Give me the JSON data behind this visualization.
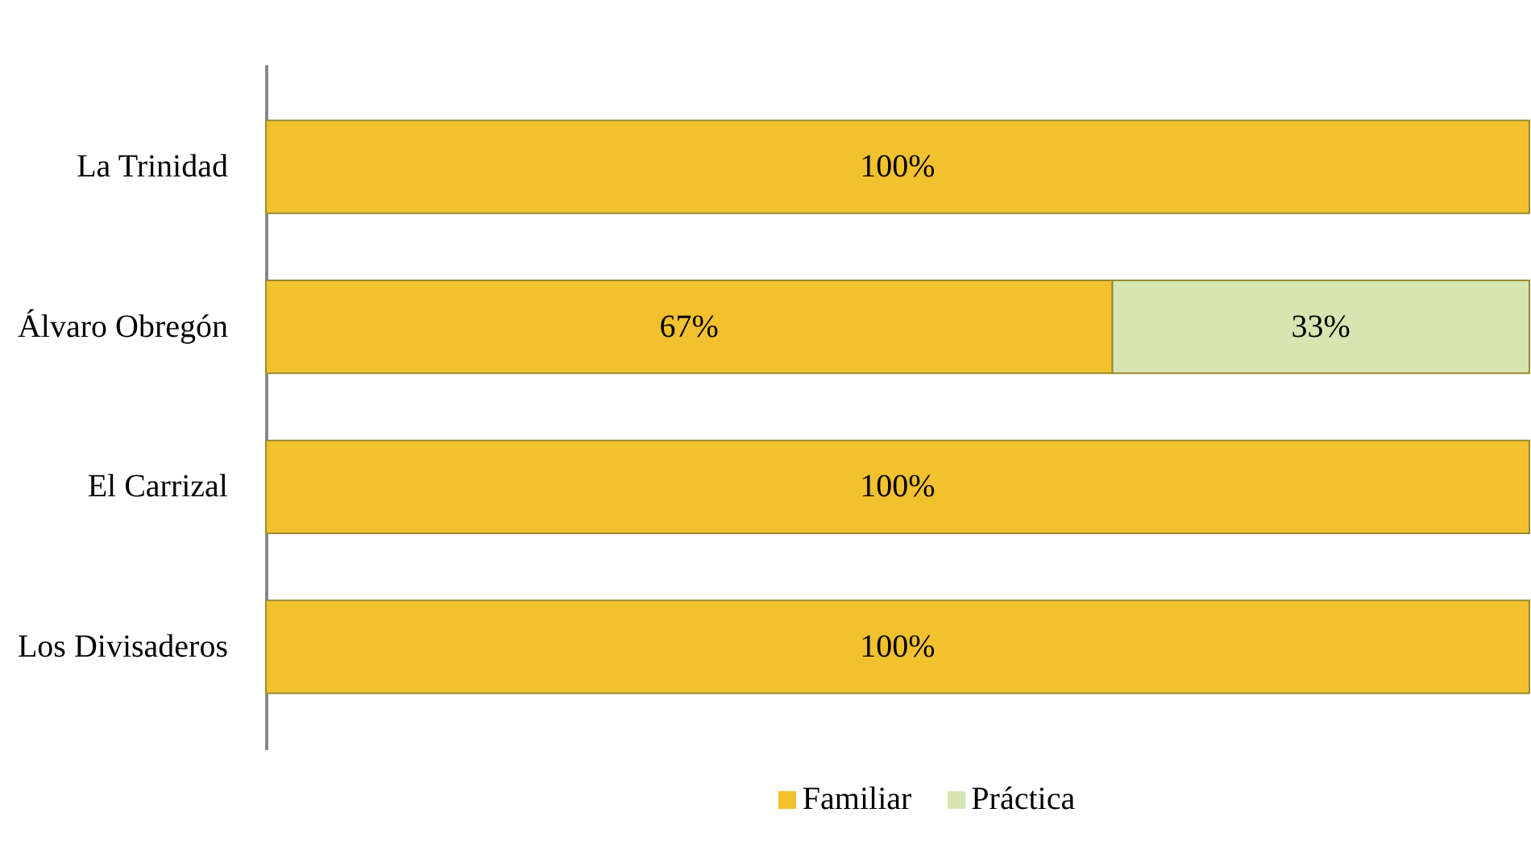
{
  "chart_data": {
    "type": "bar",
    "orientation": "horizontal",
    "stacked": true,
    "categories": [
      "La Trinidad",
      "Álvaro Obregón",
      "El Carrizal",
      "Los Divisaderos"
    ],
    "series": [
      {
        "name": "Familiar",
        "color": "#f2c12e",
        "values": [
          100,
          67,
          100,
          100
        ],
        "value_labels": [
          "100%",
          "67%",
          "100%",
          "100%"
        ]
      },
      {
        "name": "Práctica",
        "color": "#d6e6b0",
        "values": [
          null,
          33,
          null,
          null
        ],
        "value_labels": [
          null,
          "33%",
          null,
          null
        ]
      }
    ],
    "xlim": [
      0,
      100
    ],
    "tick_labels": "y",
    "legend": "bottom"
  }
}
